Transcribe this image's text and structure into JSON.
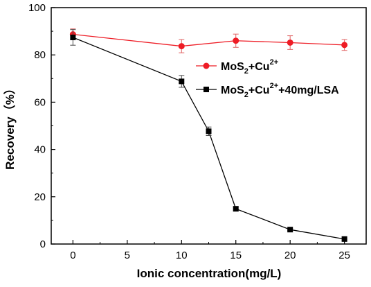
{
  "chart_data": {
    "type": "line",
    "title": "",
    "xlabel": "Ionic concentration(mg/L)",
    "ylabel": "Recovery（%）",
    "xlim": [
      -2,
      27
    ],
    "ylim": [
      0,
      100
    ],
    "xticks": [
      "0",
      "5",
      "10",
      "15",
      "20",
      "25"
    ],
    "yticks": [
      "0",
      "20",
      "40",
      "60",
      "80",
      "100"
    ],
    "grid": false,
    "legend_position": "upper-right",
    "series": [
      {
        "name": "MoS2+Cu2+",
        "name_parts": {
          "base": "MoS",
          "sub": "2",
          "mid": "+Cu",
          "sup": "2+",
          "tail": ""
        },
        "color": "#ee1c25",
        "marker": "circle",
        "x": [
          0,
          10,
          15,
          20,
          25
        ],
        "y": [
          88.7,
          83.7,
          86.0,
          85.2,
          84.2
        ],
        "err": [
          2.3,
          2.8,
          2.8,
          2.9,
          2.3
        ]
      },
      {
        "name": "MoS2+Cu2++40mg/LSA",
        "name_parts": {
          "base": "MoS",
          "sub": "2",
          "mid": "+Cu",
          "sup": "2+",
          "tail": "+40mg/LSA"
        },
        "color": "#000000",
        "marker": "square",
        "x": [
          0,
          10,
          12.5,
          15,
          20,
          25
        ],
        "y": [
          87.4,
          68.8,
          47.7,
          14.9,
          6.1,
          2.1
        ],
        "err": [
          3.3,
          2.5,
          1.8,
          0.8,
          0.5,
          0.4
        ]
      }
    ]
  }
}
